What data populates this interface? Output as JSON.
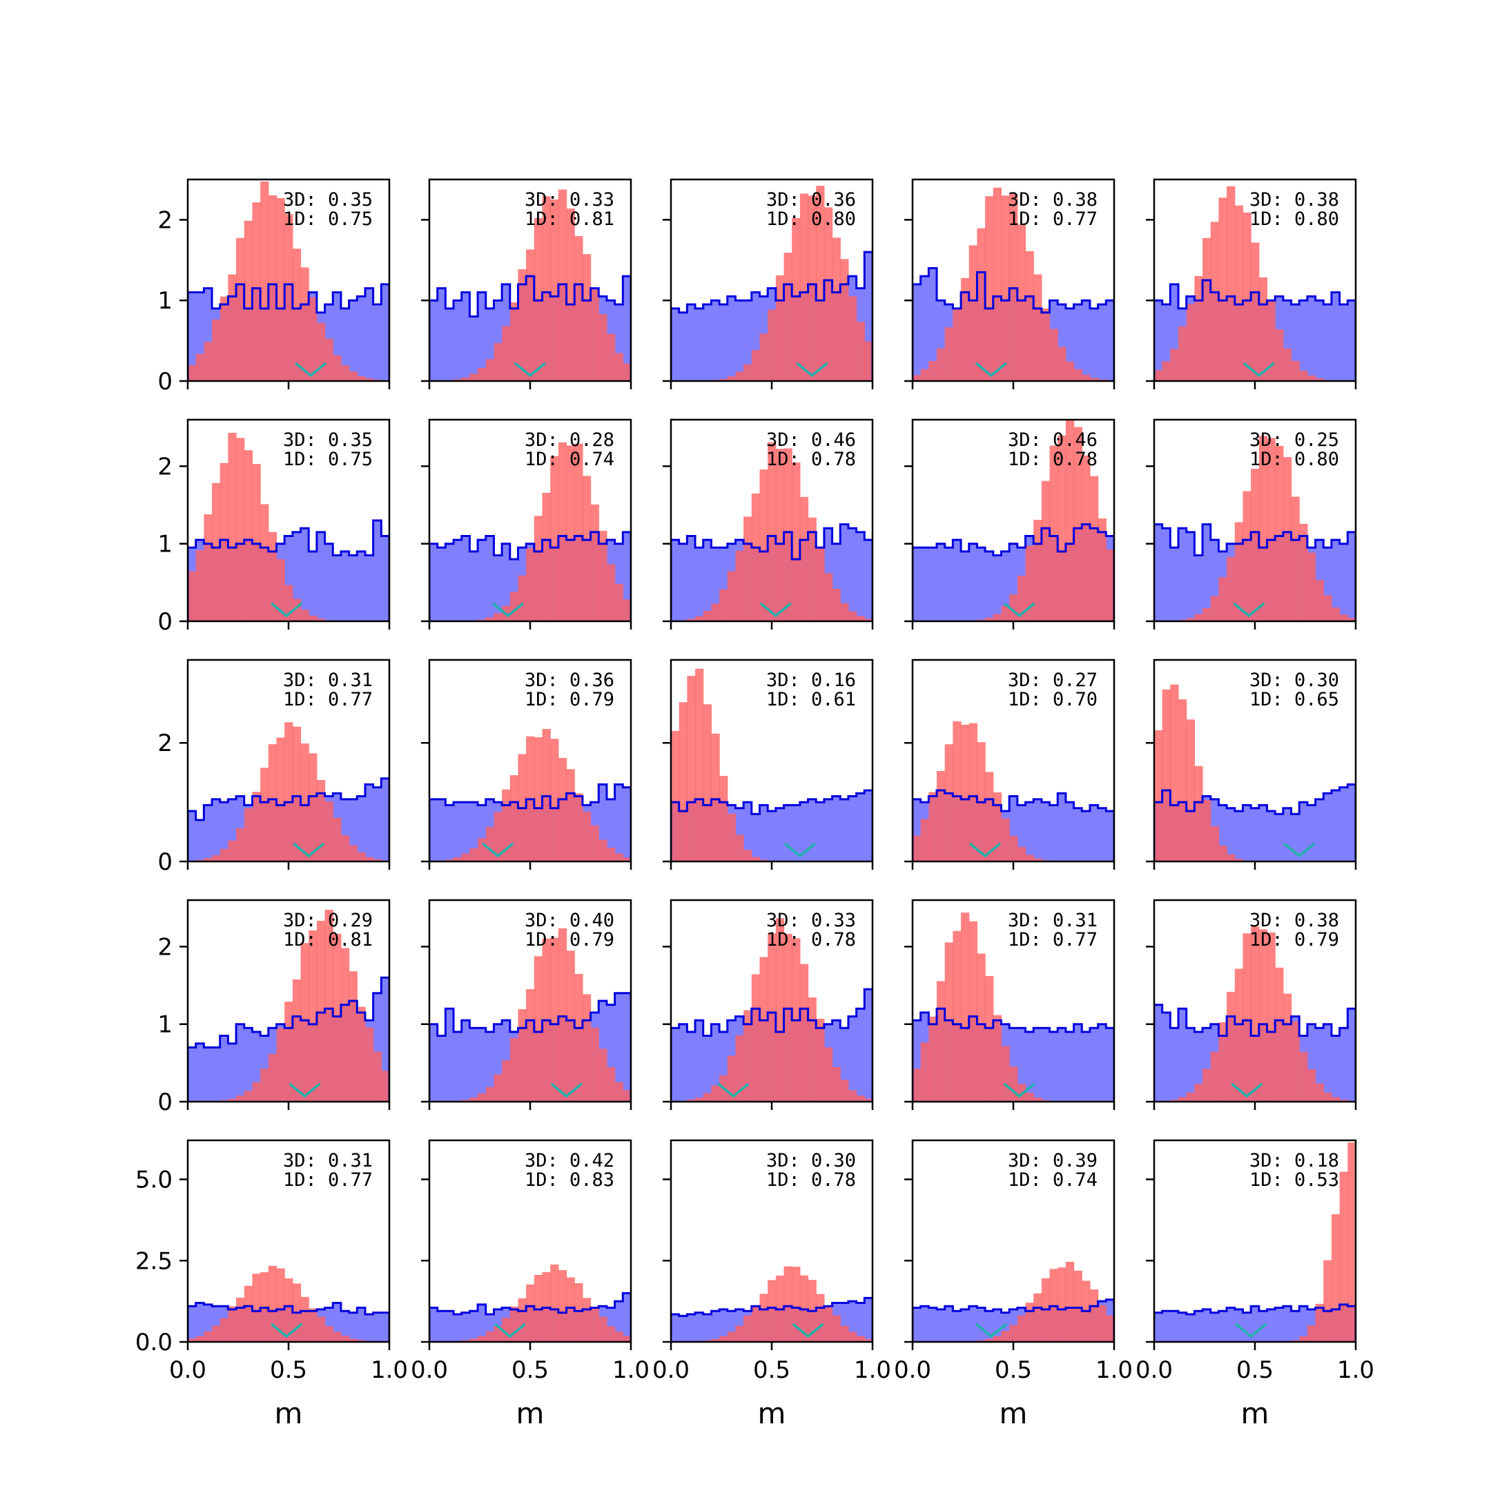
{
  "chart_data": {
    "type": "histogram-grid",
    "rows": 5,
    "cols": 5,
    "xlabel": "m",
    "xlim": [
      0,
      1
    ],
    "xticks": [
      0.0,
      0.5,
      1.0
    ],
    "xtick_labels": [
      "0.0",
      "0.5",
      "1.0"
    ],
    "row_axes": [
      {
        "ylim": [
          0,
          2.5
        ],
        "yticks": [
          0,
          1,
          2
        ],
        "ytick_labels": [
          "0",
          "1",
          "2"
        ]
      },
      {
        "ylim": [
          0,
          2.6
        ],
        "yticks": [
          0,
          1,
          2
        ],
        "ytick_labels": [
          "0",
          "1",
          "2"
        ]
      },
      {
        "ylim": [
          0,
          3.4
        ],
        "yticks": [
          0,
          2
        ],
        "ytick_labels": [
          "0",
          "2"
        ]
      },
      {
        "ylim": [
          0,
          2.6
        ],
        "yticks": [
          0,
          1,
          2
        ],
        "ytick_labels": [
          "0",
          "1",
          "2"
        ]
      },
      {
        "ylim": [
          0,
          6.2
        ],
        "yticks": [
          0,
          2.5,
          5
        ],
        "ytick_labels": [
          "0.0",
          "2.5",
          "5.0"
        ]
      }
    ],
    "colors": {
      "uniform_fill": "#8080ff",
      "uniform_edge": "#0000dd",
      "posterior_fill": "#ff6060",
      "marker": "#20b2aa"
    },
    "panels": [
      {
        "label_3d": "3D: 0.35",
        "label_1d": "1D: 0.75",
        "mu": 0.4,
        "sigma": 0.17,
        "peak": 2.4,
        "prior": [
          1.1,
          1.1,
          1.15,
          0.9,
          0.95,
          1.05,
          1.2,
          0.9,
          1.15,
          0.9,
          1.2,
          0.9,
          1.2,
          0.9,
          0.95,
          1.1,
          0.85,
          0.95,
          1.1,
          0.9,
          1.0,
          1.05,
          1.15,
          0.95,
          1.2
        ],
        "marker": 0.61
      },
      {
        "label_3d": "3D: 0.33",
        "label_1d": "1D: 0.81",
        "mu": 0.63,
        "sigma": 0.16,
        "peak": 2.35,
        "prior": [
          1.0,
          1.15,
          0.9,
          1.0,
          1.1,
          0.8,
          1.1,
          0.9,
          1.0,
          1.2,
          0.9,
          1.2,
          1.3,
          1.0,
          1.1,
          1.05,
          1.2,
          0.95,
          1.2,
          1.0,
          1.15,
          1.05,
          1.0,
          0.95,
          1.3
        ],
        "marker": 0.5
      },
      {
        "label_3d": "3D: 0.36",
        "label_1d": "1D: 0.80",
        "mu": 0.71,
        "sigma": 0.15,
        "peak": 2.4,
        "prior": [
          0.9,
          0.85,
          0.95,
          0.9,
          0.95,
          1.0,
          0.95,
          1.05,
          1.0,
          1.0,
          1.1,
          1.05,
          1.15,
          1.0,
          1.2,
          1.05,
          1.1,
          1.2,
          1.0,
          1.25,
          1.1,
          1.2,
          1.3,
          1.15,
          1.6
        ],
        "marker": 0.7
      },
      {
        "label_3d": "3D: 0.38",
        "label_1d": "1D: 0.77",
        "mu": 0.44,
        "sigma": 0.16,
        "peak": 2.4,
        "prior": [
          1.2,
          1.3,
          1.4,
          1.0,
          0.95,
          0.9,
          1.1,
          1.0,
          1.35,
          0.9,
          1.05,
          1.0,
          1.15,
          1.0,
          1.05,
          0.9,
          0.85,
          1.0,
          0.95,
          0.9,
          0.95,
          1.0,
          0.9,
          0.95,
          1.0
        ],
        "marker": 0.39
      },
      {
        "label_3d": "3D: 0.38",
        "label_1d": "1D: 0.80",
        "mu": 0.38,
        "sigma": 0.15,
        "peak": 2.35,
        "prior": [
          1.0,
          0.95,
          1.2,
          0.9,
          1.05,
          1.0,
          1.25,
          1.1,
          1.0,
          1.05,
          0.95,
          1.0,
          1.1,
          0.95,
          1.0,
          1.05,
          1.0,
          0.95,
          1.0,
          1.05,
          1.0,
          0.95,
          1.1,
          0.95,
          1.0
        ],
        "marker": 0.52
      },
      {
        "label_3d": "3D: 0.35",
        "label_1d": "1D: 0.75",
        "mu": 0.25,
        "sigma": 0.14,
        "peak": 2.4,
        "prior": [
          0.95,
          1.05,
          1.0,
          0.95,
          1.05,
          0.95,
          1.0,
          1.05,
          1.0,
          0.95,
          0.9,
          1.0,
          1.1,
          1.15,
          1.2,
          0.9,
          1.15,
          1.0,
          0.85,
          0.9,
          0.85,
          0.9,
          0.85,
          1.3,
          1.1
        ],
        "marker": 0.49
      },
      {
        "label_3d": "3D: 0.28",
        "label_1d": "1D: 0.74",
        "mu": 0.69,
        "sigma": 0.14,
        "peak": 2.35,
        "prior": [
          1.0,
          0.95,
          1.0,
          1.05,
          1.1,
          0.9,
          1.05,
          1.1,
          0.85,
          1.0,
          0.8,
          0.95,
          1.0,
          0.9,
          1.05,
          0.95,
          1.1,
          1.05,
          1.1,
          1.05,
          1.15,
          1.0,
          1.05,
          1.0,
          1.15
        ],
        "marker": 0.39
      },
      {
        "label_3d": "3D: 0.46",
        "label_1d": "1D: 0.78",
        "mu": 0.54,
        "sigma": 0.15,
        "peak": 2.3,
        "prior": [
          1.05,
          1.0,
          1.1,
          0.95,
          1.05,
          0.95,
          0.95,
          1.0,
          1.05,
          1.0,
          0.95,
          0.9,
          1.1,
          1.0,
          1.15,
          0.8,
          1.05,
          1.15,
          0.95,
          1.2,
          1.0,
          1.25,
          1.2,
          1.15,
          1.05
        ],
        "marker": 0.52
      },
      {
        "label_3d": "3D: 0.46",
        "label_1d": "1D: 0.78",
        "mu": 0.78,
        "sigma": 0.14,
        "peak": 2.6,
        "prior": [
          0.95,
          0.95,
          0.95,
          1.0,
          0.95,
          1.05,
          0.9,
          1.0,
          0.95,
          0.9,
          0.85,
          0.9,
          1.0,
          0.95,
          1.1,
          1.0,
          1.2,
          1.1,
          0.9,
          1.0,
          1.2,
          1.25,
          1.2,
          1.15,
          1.1
        ],
        "marker": 0.53
      },
      {
        "label_3d": "3D: 0.25",
        "label_1d": "1D: 0.80",
        "mu": 0.58,
        "sigma": 0.14,
        "peak": 2.4,
        "prior": [
          1.25,
          1.2,
          0.95,
          1.2,
          1.15,
          0.85,
          1.25,
          1.05,
          0.9,
          1.0,
          1.0,
          1.05,
          1.15,
          0.95,
          1.05,
          1.1,
          1.15,
          1.05,
          1.1,
          0.95,
          1.05,
          0.95,
          1.05,
          1.0,
          1.15
        ],
        "marker": 0.47
      },
      {
        "label_3d": "3D: 0.31",
        "label_1d": "1D: 0.77",
        "mu": 0.51,
        "sigma": 0.15,
        "peak": 2.3,
        "prior": [
          0.85,
          0.7,
          0.95,
          1.05,
          1.0,
          1.05,
          1.1,
          0.95,
          1.1,
          1.0,
          1.05,
          0.95,
          1.0,
          1.1,
          0.95,
          1.1,
          1.15,
          1.1,
          1.15,
          1.05,
          1.05,
          1.1,
          1.3,
          1.25,
          1.4
        ],
        "marker": 0.6
      },
      {
        "label_3d": "3D: 0.36",
        "label_1d": "1D: 0.79",
        "mu": 0.56,
        "sigma": 0.16,
        "peak": 2.2,
        "prior": [
          1.05,
          1.05,
          0.95,
          1.0,
          1.0,
          1.0,
          0.95,
          1.05,
          1.0,
          0.95,
          1.0,
          0.9,
          1.05,
          0.9,
          1.1,
          0.9,
          1.05,
          1.15,
          1.1,
          0.95,
          1.0,
          1.3,
          1.05,
          1.3,
          1.25
        ],
        "marker": 0.34
      },
      {
        "label_3d": "3D: 0.16",
        "label_1d": "1D: 0.61",
        "mu": 0.12,
        "sigma": 0.11,
        "peak": 3.2,
        "prior": [
          1.0,
          0.85,
          1.0,
          1.05,
          0.95,
          1.05,
          1.0,
          0.95,
          0.9,
          1.0,
          0.8,
          0.95,
          0.85,
          0.9,
          0.95,
          0.95,
          1.0,
          1.05,
          1.0,
          1.05,
          1.1,
          1.05,
          1.1,
          1.15,
          1.2
        ],
        "marker": 0.64
      },
      {
        "label_3d": "3D: 0.27",
        "label_1d": "1D: 0.70",
        "mu": 0.26,
        "sigma": 0.13,
        "peak": 2.4,
        "prior": [
          1.05,
          1.0,
          1.1,
          1.2,
          1.15,
          1.1,
          1.05,
          1.1,
          1.0,
          1.05,
          0.95,
          0.85,
          1.1,
          0.95,
          1.0,
          1.05,
          1.0,
          0.95,
          1.15,
          1.0,
          0.9,
          0.85,
          0.95,
          0.9,
          0.85
        ],
        "marker": 0.36
      },
      {
        "label_3d": "3D: 0.30",
        "label_1d": "1D: 0.65",
        "mu": 0.1,
        "sigma": 0.11,
        "peak": 3.0,
        "prior": [
          1.0,
          1.2,
          0.95,
          1.0,
          0.85,
          1.0,
          1.1,
          1.05,
          0.95,
          0.9,
          0.85,
          0.95,
          0.9,
          0.95,
          0.85,
          0.8,
          0.9,
          0.8,
          1.0,
          0.95,
          1.05,
          1.15,
          1.2,
          1.25,
          1.3
        ],
        "marker": 0.72
      },
      {
        "label_3d": "3D: 0.29",
        "label_1d": "1D: 0.81",
        "mu": 0.68,
        "sigma": 0.16,
        "peak": 2.4,
        "prior": [
          0.7,
          0.75,
          0.7,
          0.7,
          0.85,
          0.75,
          1.0,
          0.95,
          0.9,
          0.85,
          0.95,
          1.0,
          0.95,
          1.1,
          1.05,
          1.0,
          1.15,
          1.2,
          1.1,
          1.25,
          1.3,
          1.15,
          1.05,
          1.4,
          1.6
        ],
        "marker": 0.58
      },
      {
        "label_3d": "3D: 0.40",
        "label_1d": "1D: 0.79",
        "mu": 0.63,
        "sigma": 0.15,
        "peak": 2.2,
        "prior": [
          1.0,
          0.85,
          1.2,
          0.9,
          1.05,
          0.95,
          0.95,
          0.9,
          1.0,
          1.05,
          0.9,
          0.95,
          1.05,
          0.9,
          1.05,
          1.0,
          1.1,
          1.05,
          0.95,
          1.05,
          1.15,
          1.3,
          1.25,
          1.4,
          1.4
        ],
        "marker": 0.68
      },
      {
        "label_3d": "3D: 0.33",
        "label_1d": "1D: 0.78",
        "mu": 0.55,
        "sigma": 0.15,
        "peak": 2.3,
        "prior": [
          0.95,
          1.0,
          0.9,
          1.05,
          0.85,
          1.0,
          0.9,
          1.05,
          1.1,
          1.0,
          1.2,
          1.05,
          1.15,
          0.9,
          1.2,
          1.05,
          1.2,
          1.05,
          0.95,
          1.0,
          1.05,
          0.95,
          1.1,
          1.2,
          1.45
        ],
        "marker": 0.31
      },
      {
        "label_3d": "3D: 0.31",
        "label_1d": "1D: 0.77",
        "mu": 0.26,
        "sigma": 0.13,
        "peak": 2.4,
        "prior": [
          1.05,
          1.15,
          1.0,
          1.2,
          1.05,
          1.0,
          0.95,
          1.1,
          1.0,
          0.95,
          1.05,
          1.0,
          0.95,
          0.95,
          0.9,
          0.95,
          0.95,
          0.9,
          0.95,
          0.9,
          1.0,
          0.9,
          0.95,
          1.0,
          0.95
        ],
        "marker": 0.53
      },
      {
        "label_3d": "3D: 0.38",
        "label_1d": "1D: 0.79",
        "mu": 0.52,
        "sigma": 0.14,
        "peak": 2.3,
        "prior": [
          1.25,
          1.15,
          0.95,
          1.2,
          0.95,
          0.9,
          0.95,
          1.0,
          0.85,
          1.1,
          1.0,
          1.05,
          0.85,
          1.0,
          0.9,
          1.05,
          1.0,
          1.1,
          0.85,
          1.0,
          0.95,
          1.0,
          0.85,
          0.95,
          1.2
        ],
        "marker": 0.46
      },
      {
        "label_3d": "3D: 0.31",
        "label_1d": "1D: 0.77",
        "mu": 0.42,
        "sigma": 0.16,
        "peak": 2.3,
        "prior": [
          1.1,
          1.2,
          1.15,
          1.1,
          1.1,
          1.0,
          1.05,
          1.1,
          0.95,
          1.05,
          0.95,
          1.0,
          1.1,
          0.9,
          0.95,
          0.95,
          1.0,
          1.05,
          1.2,
          0.95,
          0.9,
          1.05,
          0.85,
          0.9,
          0.9
        ],
        "marker": 0.49
      },
      {
        "label_3d": "3D: 0.42",
        "label_1d": "1D: 0.83",
        "mu": 0.62,
        "sigma": 0.16,
        "peak": 2.3,
        "prior": [
          1.05,
          0.95,
          0.95,
          0.85,
          0.9,
          0.95,
          1.15,
          0.85,
          1.0,
          1.05,
          1.0,
          0.95,
          1.1,
          1.0,
          1.05,
          1.0,
          0.9,
          1.05,
          0.95,
          1.0,
          1.05,
          1.1,
          1.05,
          1.25,
          1.5
        ],
        "marker": 0.4
      },
      {
        "label_3d": "3D: 0.30",
        "label_1d": "1D: 0.78",
        "mu": 0.6,
        "sigma": 0.15,
        "peak": 2.3,
        "prior": [
          0.85,
          0.8,
          0.85,
          0.9,
          0.85,
          0.95,
          1.0,
          0.95,
          1.0,
          0.95,
          1.1,
          1.0,
          1.05,
          1.0,
          1.1,
          1.05,
          1.0,
          0.95,
          1.05,
          1.1,
          1.2,
          1.2,
          1.25,
          1.2,
          1.35
        ],
        "marker": 0.68
      },
      {
        "label_3d": "3D: 0.39",
        "label_1d": "1D: 0.74",
        "mu": 0.76,
        "sigma": 0.15,
        "peak": 2.4,
        "prior": [
          1.05,
          1.1,
          1.05,
          1.0,
          1.1,
          0.95,
          1.0,
          1.1,
          1.05,
          0.95,
          1.0,
          0.9,
          1.0,
          1.05,
          0.95,
          1.05,
          1.0,
          1.1,
          1.0,
          1.05,
          1.05,
          0.95,
          1.1,
          1.25,
          1.3
        ],
        "marker": 0.39
      },
      {
        "label_3d": "3D: 0.18",
        "label_1d": "1D: 0.53",
        "mu": 0.98,
        "sigma": 0.09,
        "peak": 5.9,
        "prior": [
          0.9,
          0.95,
          0.95,
          0.9,
          0.85,
          0.95,
          1.0,
          0.9,
          0.95,
          1.05,
          1.0,
          0.9,
          1.1,
          0.95,
          1.0,
          1.05,
          1.1,
          0.95,
          1.1,
          1.0,
          1.05,
          0.95,
          1.0,
          1.15,
          1.1
        ],
        "marker": 0.48
      }
    ]
  }
}
